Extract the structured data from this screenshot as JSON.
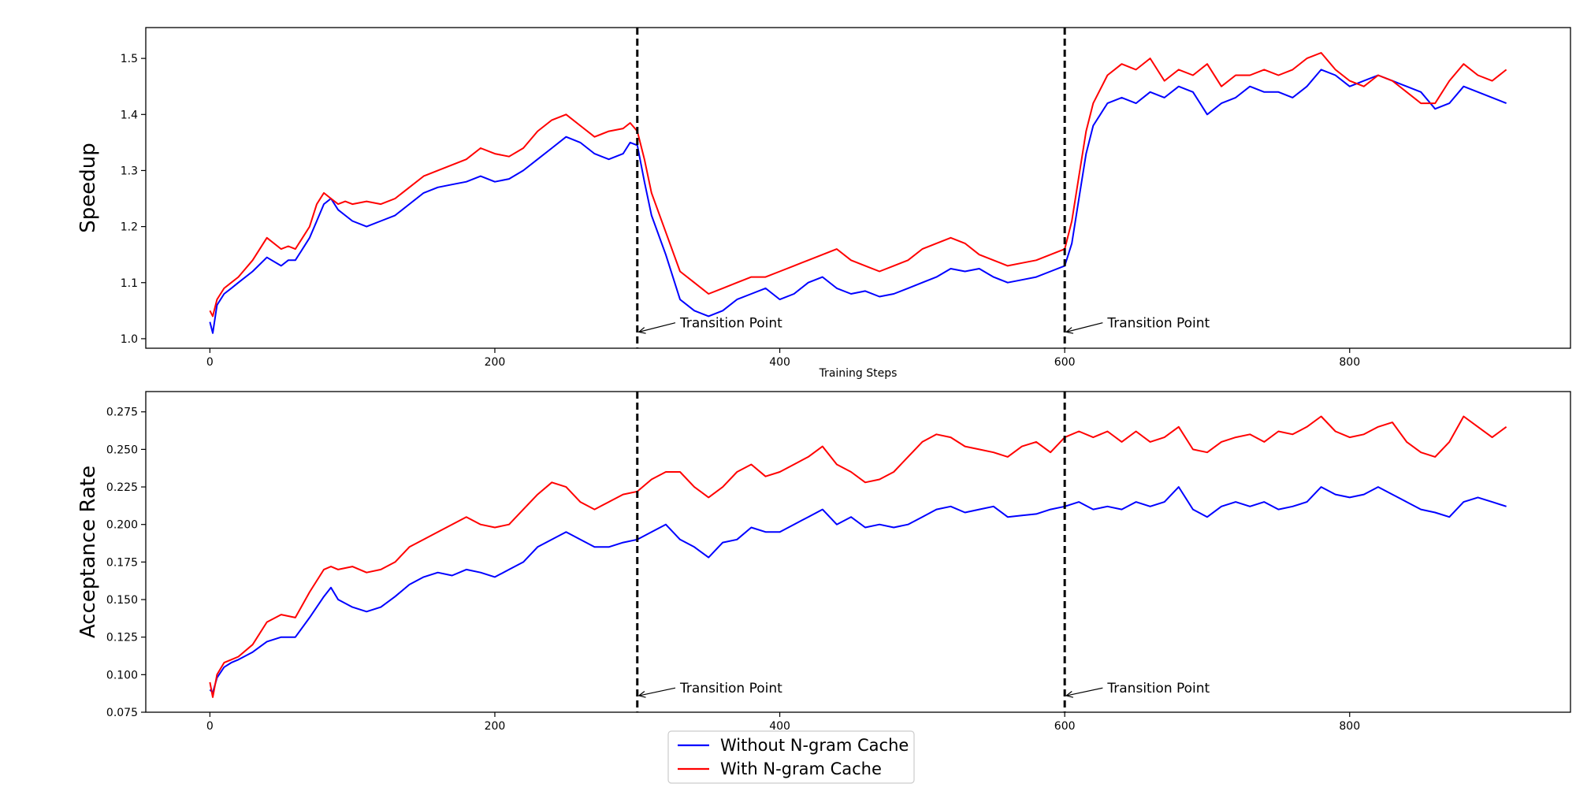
{
  "chart_data": [
    {
      "type": "line",
      "title": "",
      "xlabel": "Training Steps",
      "ylabel": "Speedup",
      "xlim": [
        -45,
        955
      ],
      "ylim": [
        0.983,
        1.555
      ],
      "xticks": [
        0,
        200,
        400,
        600,
        800
      ],
      "yticks": [
        1.0,
        1.1,
        1.2,
        1.3,
        1.4,
        1.5
      ],
      "ytick_labels": [
        "1.0",
        "1.1",
        "1.2",
        "1.3",
        "1.4",
        "1.5"
      ],
      "transitions": [
        300,
        600
      ],
      "annotations": [
        {
          "text": "Transition Point",
          "x": 300,
          "y": 1.012,
          "text_x": 330,
          "text_y": 1.02
        },
        {
          "text": "Transition Point",
          "x": 600,
          "y": 1.012,
          "text_x": 630,
          "text_y": 1.02
        }
      ],
      "series": [
        {
          "name": "Without N-gram Cache",
          "color": "#0000ff",
          "x": [
            0,
            2,
            5,
            10,
            15,
            20,
            30,
            40,
            50,
            55,
            60,
            65,
            70,
            75,
            80,
            85,
            90,
            95,
            100,
            110,
            120,
            130,
            140,
            150,
            160,
            170,
            180,
            190,
            200,
            210,
            220,
            230,
            240,
            250,
            260,
            270,
            280,
            290,
            295,
            300,
            305,
            310,
            320,
            330,
            340,
            350,
            360,
            370,
            380,
            390,
            400,
            410,
            420,
            430,
            440,
            450,
            460,
            470,
            480,
            490,
            500,
            510,
            520,
            530,
            540,
            550,
            560,
            570,
            580,
            590,
            600,
            605,
            610,
            615,
            620,
            630,
            640,
            650,
            660,
            670,
            680,
            690,
            700,
            710,
            720,
            730,
            740,
            750,
            760,
            770,
            780,
            790,
            800,
            810,
            820,
            830,
            840,
            850,
            860,
            870,
            880,
            890,
            900,
            910
          ],
          "y": [
            1.03,
            1.01,
            1.06,
            1.08,
            1.09,
            1.1,
            1.12,
            1.145,
            1.13,
            1.14,
            1.14,
            1.16,
            1.18,
            1.21,
            1.24,
            1.25,
            1.23,
            1.22,
            1.21,
            1.2,
            1.21,
            1.22,
            1.24,
            1.26,
            1.27,
            1.275,
            1.28,
            1.29,
            1.28,
            1.285,
            1.3,
            1.32,
            1.34,
            1.36,
            1.35,
            1.33,
            1.32,
            1.33,
            1.35,
            1.345,
            1.28,
            1.22,
            1.15,
            1.07,
            1.05,
            1.04,
            1.05,
            1.07,
            1.08,
            1.09,
            1.07,
            1.08,
            1.1,
            1.11,
            1.09,
            1.08,
            1.085,
            1.075,
            1.08,
            1.09,
            1.1,
            1.11,
            1.125,
            1.12,
            1.125,
            1.11,
            1.1,
            1.105,
            1.11,
            1.12,
            1.13,
            1.17,
            1.25,
            1.33,
            1.38,
            1.42,
            1.43,
            1.42,
            1.44,
            1.43,
            1.45,
            1.44,
            1.4,
            1.42,
            1.43,
            1.45,
            1.44,
            1.44,
            1.43,
            1.45,
            1.48,
            1.47,
            1.45,
            1.46,
            1.47,
            1.46,
            1.45,
            1.44,
            1.41,
            1.42,
            1.45,
            1.44,
            1.43,
            1.42
          ]
        },
        {
          "name": "With N-gram Cache",
          "color": "#ff0000",
          "x": [
            0,
            2,
            5,
            10,
            15,
            20,
            30,
            40,
            50,
            55,
            60,
            65,
            70,
            75,
            80,
            85,
            90,
            95,
            100,
            110,
            120,
            130,
            140,
            150,
            160,
            170,
            180,
            190,
            200,
            210,
            220,
            230,
            240,
            250,
            260,
            270,
            280,
            290,
            295,
            300,
            305,
            310,
            320,
            330,
            340,
            350,
            360,
            370,
            380,
            390,
            400,
            410,
            420,
            430,
            440,
            450,
            460,
            470,
            480,
            490,
            500,
            510,
            520,
            530,
            540,
            550,
            560,
            570,
            580,
            590,
            600,
            605,
            610,
            615,
            620,
            630,
            640,
            650,
            660,
            670,
            680,
            690,
            700,
            710,
            720,
            730,
            740,
            750,
            760,
            770,
            780,
            790,
            800,
            810,
            820,
            830,
            840,
            850,
            860,
            870,
            880,
            890,
            900,
            910
          ],
          "y": [
            1.05,
            1.04,
            1.07,
            1.09,
            1.1,
            1.11,
            1.14,
            1.18,
            1.16,
            1.165,
            1.16,
            1.18,
            1.2,
            1.24,
            1.26,
            1.25,
            1.24,
            1.245,
            1.24,
            1.245,
            1.24,
            1.25,
            1.27,
            1.29,
            1.3,
            1.31,
            1.32,
            1.34,
            1.33,
            1.325,
            1.34,
            1.37,
            1.39,
            1.4,
            1.38,
            1.36,
            1.37,
            1.375,
            1.385,
            1.37,
            1.32,
            1.26,
            1.19,
            1.12,
            1.1,
            1.08,
            1.09,
            1.1,
            1.11,
            1.11,
            1.12,
            1.13,
            1.14,
            1.15,
            1.16,
            1.14,
            1.13,
            1.12,
            1.13,
            1.14,
            1.16,
            1.17,
            1.18,
            1.17,
            1.15,
            1.14,
            1.13,
            1.135,
            1.14,
            1.15,
            1.16,
            1.21,
            1.29,
            1.37,
            1.42,
            1.47,
            1.49,
            1.48,
            1.5,
            1.46,
            1.48,
            1.47,
            1.49,
            1.45,
            1.47,
            1.47,
            1.48,
            1.47,
            1.48,
            1.5,
            1.51,
            1.48,
            1.46,
            1.45,
            1.47,
            1.46,
            1.44,
            1.42,
            1.42,
            1.46,
            1.49,
            1.47,
            1.46,
            1.48
          ]
        }
      ]
    },
    {
      "type": "line",
      "title": "",
      "xlabel": "",
      "ylabel": "Acceptance Rate",
      "xlim": [
        -45,
        955
      ],
      "ylim": [
        0.075,
        0.2885
      ],
      "xticks": [
        0,
        200,
        400,
        600,
        800
      ],
      "yticks": [
        0.075,
        0.1,
        0.125,
        0.15,
        0.175,
        0.2,
        0.225,
        0.25,
        0.275
      ],
      "ytick_labels": [
        "0.075",
        "0.100",
        "0.125",
        "0.150",
        "0.175",
        "0.200",
        "0.225",
        "0.250",
        "0.275"
      ],
      "transitions": [
        300,
        600
      ],
      "annotations": [
        {
          "text": "Transition Point",
          "x": 300,
          "y": 0.086,
          "text_x": 330,
          "text_y": 0.088
        },
        {
          "text": "Transition Point",
          "x": 600,
          "y": 0.086,
          "text_x": 630,
          "text_y": 0.088
        }
      ],
      "series": [
        {
          "name": "Without N-gram Cache",
          "color": "#0000ff",
          "x": [
            0,
            2,
            5,
            10,
            15,
            20,
            30,
            40,
            50,
            60,
            70,
            80,
            85,
            90,
            100,
            110,
            120,
            130,
            140,
            150,
            160,
            170,
            180,
            190,
            200,
            210,
            220,
            230,
            240,
            250,
            260,
            270,
            280,
            290,
            300,
            310,
            320,
            330,
            340,
            350,
            360,
            370,
            380,
            390,
            400,
            410,
            420,
            430,
            440,
            450,
            460,
            470,
            480,
            490,
            500,
            510,
            520,
            530,
            540,
            550,
            560,
            570,
            580,
            590,
            600,
            610,
            620,
            630,
            640,
            650,
            660,
            670,
            680,
            690,
            700,
            710,
            720,
            730,
            740,
            750,
            760,
            770,
            780,
            790,
            800,
            810,
            820,
            830,
            840,
            850,
            860,
            870,
            880,
            890,
            900,
            910
          ],
          "y": [
            0.09,
            0.088,
            0.098,
            0.105,
            0.108,
            0.11,
            0.115,
            0.122,
            0.125,
            0.125,
            0.138,
            0.152,
            0.158,
            0.15,
            0.145,
            0.142,
            0.145,
            0.152,
            0.16,
            0.165,
            0.168,
            0.166,
            0.17,
            0.168,
            0.165,
            0.17,
            0.175,
            0.185,
            0.19,
            0.195,
            0.19,
            0.185,
            0.185,
            0.188,
            0.19,
            0.195,
            0.2,
            0.19,
            0.185,
            0.178,
            0.188,
            0.19,
            0.198,
            0.195,
            0.195,
            0.2,
            0.205,
            0.21,
            0.2,
            0.205,
            0.198,
            0.2,
            0.198,
            0.2,
            0.205,
            0.21,
            0.212,
            0.208,
            0.21,
            0.212,
            0.205,
            0.206,
            0.207,
            0.21,
            0.212,
            0.215,
            0.21,
            0.212,
            0.21,
            0.215,
            0.212,
            0.215,
            0.225,
            0.21,
            0.205,
            0.212,
            0.215,
            0.212,
            0.215,
            0.21,
            0.212,
            0.215,
            0.225,
            0.22,
            0.218,
            0.22,
            0.225,
            0.22,
            0.215,
            0.21,
            0.208,
            0.205,
            0.215,
            0.218,
            0.215,
            0.212
          ]
        },
        {
          "name": "With N-gram Cache",
          "color": "#ff0000",
          "x": [
            0,
            2,
            5,
            10,
            15,
            20,
            30,
            40,
            50,
            60,
            70,
            80,
            85,
            90,
            100,
            110,
            120,
            130,
            140,
            150,
            160,
            170,
            180,
            190,
            200,
            210,
            220,
            230,
            240,
            250,
            260,
            270,
            280,
            290,
            300,
            310,
            320,
            330,
            340,
            350,
            360,
            370,
            380,
            390,
            400,
            410,
            420,
            430,
            440,
            450,
            460,
            470,
            480,
            490,
            500,
            510,
            520,
            530,
            540,
            550,
            560,
            570,
            580,
            590,
            600,
            610,
            620,
            630,
            640,
            650,
            660,
            670,
            680,
            690,
            700,
            710,
            720,
            730,
            740,
            750,
            760,
            770,
            780,
            790,
            800,
            810,
            820,
            830,
            840,
            850,
            860,
            870,
            880,
            890,
            900,
            910
          ],
          "y": [
            0.095,
            0.085,
            0.1,
            0.108,
            0.11,
            0.112,
            0.12,
            0.135,
            0.14,
            0.138,
            0.155,
            0.17,
            0.172,
            0.17,
            0.172,
            0.168,
            0.17,
            0.175,
            0.185,
            0.19,
            0.195,
            0.2,
            0.205,
            0.2,
            0.198,
            0.2,
            0.21,
            0.22,
            0.228,
            0.225,
            0.215,
            0.21,
            0.215,
            0.22,
            0.222,
            0.23,
            0.235,
            0.235,
            0.225,
            0.218,
            0.225,
            0.235,
            0.24,
            0.232,
            0.235,
            0.24,
            0.245,
            0.252,
            0.24,
            0.235,
            0.228,
            0.23,
            0.235,
            0.245,
            0.255,
            0.26,
            0.258,
            0.252,
            0.25,
            0.248,
            0.245,
            0.252,
            0.255,
            0.248,
            0.258,
            0.262,
            0.258,
            0.262,
            0.255,
            0.262,
            0.255,
            0.258,
            0.265,
            0.25,
            0.248,
            0.255,
            0.258,
            0.26,
            0.255,
            0.262,
            0.26,
            0.265,
            0.272,
            0.262,
            0.258,
            0.26,
            0.265,
            0.268,
            0.255,
            0.248,
            0.245,
            0.255,
            0.272,
            0.265,
            0.258,
            0.265
          ]
        }
      ]
    }
  ],
  "legend": {
    "position": "bottom-center",
    "items": [
      {
        "label": "Without N-gram Cache",
        "color": "#0000ff"
      },
      {
        "label": "With N-gram Cache",
        "color": "#ff0000"
      }
    ]
  }
}
